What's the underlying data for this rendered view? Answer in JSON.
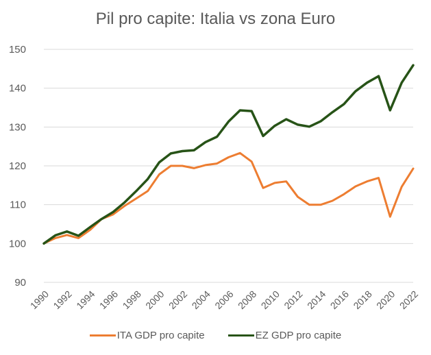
{
  "chart_data": {
    "type": "line",
    "title": "Pil pro capite: Italia vs zona Euro",
    "xlabel": "",
    "ylabel": "",
    "ylim": [
      90,
      150
    ],
    "yticks": [
      90,
      100,
      110,
      120,
      130,
      140,
      150
    ],
    "xtick_labels": [
      "1990",
      "1992",
      "1994",
      "1996",
      "1998",
      "2000",
      "2002",
      "2004",
      "2006",
      "2008",
      "2010",
      "2012",
      "2014",
      "2016",
      "2018",
      "2020",
      "2022"
    ],
    "x": [
      1990,
      1991,
      1992,
      1993,
      1994,
      1995,
      1996,
      1997,
      1998,
      1999,
      2000,
      2001,
      2002,
      2003,
      2004,
      2005,
      2006,
      2007,
      2008,
      2009,
      2010,
      2011,
      2012,
      2013,
      2014,
      2015,
      2016,
      2017,
      2018,
      2019,
      2020,
      2021,
      2022
    ],
    "series": [
      {
        "name": "ITA GDP pro capite",
        "color": "#ED7D31",
        "values": [
          100,
          101.4,
          102.2,
          101.4,
          103.5,
          106.3,
          107.5,
          109.7,
          111.6,
          113.5,
          117.8,
          120.0,
          120.0,
          119.4,
          120.2,
          120.6,
          122.2,
          123.3,
          121.1,
          114.3,
          115.6,
          116.0,
          112.0,
          110.0,
          110.0,
          111.0,
          112.7,
          114.7,
          116.0,
          116.9,
          106.9,
          114.6,
          119.3
        ]
      },
      {
        "name": "EZ GDP pro capite",
        "color": "#275317",
        "values": [
          100,
          102.1,
          103.1,
          102.0,
          104.2,
          106.3,
          108.1,
          110.6,
          113.5,
          116.6,
          120.9,
          123.2,
          123.8,
          124.0,
          126.1,
          127.5,
          131.4,
          134.3,
          134.1,
          127.7,
          130.3,
          132.0,
          130.6,
          130.1,
          131.5,
          133.8,
          135.9,
          139.2,
          141.4,
          143.1,
          134.3,
          141.4,
          145.9
        ]
      }
    ],
    "grid": true,
    "legend": "bottom"
  }
}
